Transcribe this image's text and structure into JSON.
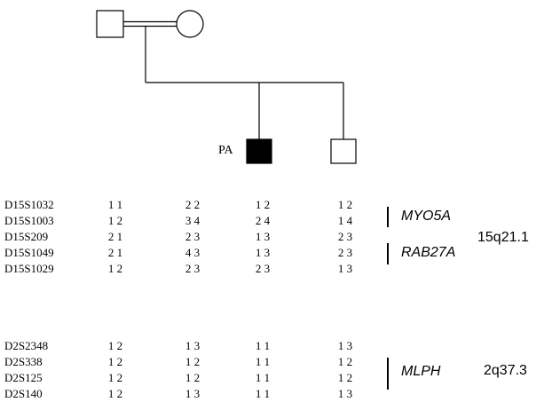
{
  "pedigree": {
    "proband_label": "PA",
    "individuals": [
      {
        "id": "father",
        "sex": "male",
        "affected": false
      },
      {
        "id": "mother",
        "sex": "female",
        "affected": false
      },
      {
        "id": "proband",
        "sex": "male",
        "affected": true
      },
      {
        "id": "brother",
        "sex": "male",
        "affected": false
      }
    ],
    "fill_color": "#000000"
  },
  "haplotypes": {
    "chr15": {
      "locus": "15q21.1",
      "markers": [
        {
          "name": "D15S1032",
          "father": "1 1",
          "mother": "2 2",
          "proband": "1 2",
          "brother": "1 2"
        },
        {
          "name": "D15S1003",
          "father": "1 2",
          "mother": "3 4",
          "proband": "2 4",
          "brother": "1 4"
        },
        {
          "name": "D15S209",
          "father": "2 1",
          "mother": "2 3",
          "proband": "1 3",
          "brother": "2 3"
        },
        {
          "name": "D15S1049",
          "father": "2 1",
          "mother": "4 3",
          "proband": "1 3",
          "brother": "2 3"
        },
        {
          "name": "D15S1029",
          "father": "1 2",
          "mother": "2 3",
          "proband": "2 3",
          "brother": "1 3"
        }
      ],
      "genes": [
        "MYO5A",
        "RAB27A"
      ]
    },
    "chr2": {
      "locus": "2q37.3",
      "markers": [
        {
          "name": "D2S2348",
          "father": "1 2",
          "mother": "1 3",
          "proband": "1 1",
          "brother": "1 3"
        },
        {
          "name": "D2S338",
          "father": "1 2",
          "mother": "1 2",
          "proband": "1 1",
          "brother": "1 2"
        },
        {
          "name": "D2S125",
          "father": "1 2",
          "mother": "1 2",
          "proband": "1 1",
          "brother": "1 2"
        },
        {
          "name": "D2S140",
          "father": "1 2",
          "mother": "1 3",
          "proband": "1 1",
          "brother": "1 3"
        }
      ],
      "genes": [
        "MLPH"
      ]
    }
  }
}
